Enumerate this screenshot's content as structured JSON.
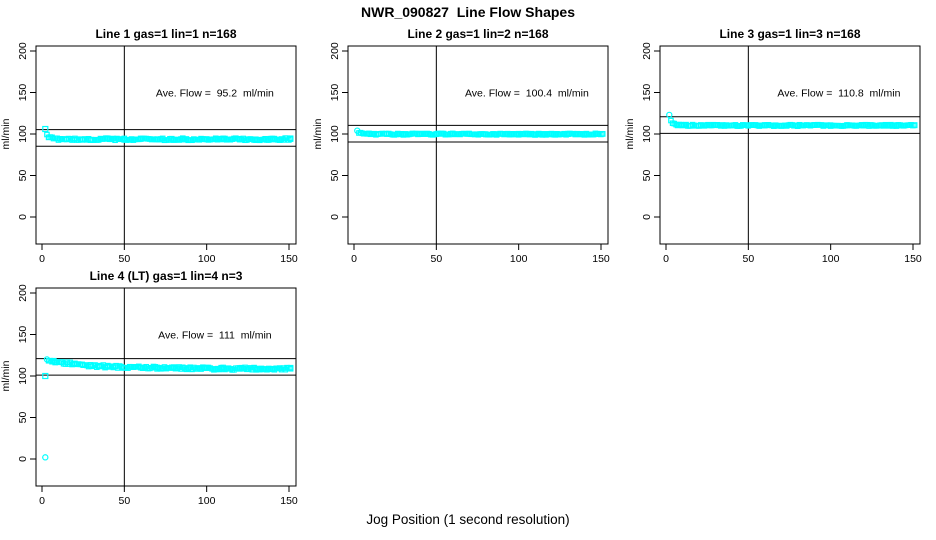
{
  "page": {
    "main_title": "NWR_090827  Line Flow Shapes",
    "x_axis_label": "Jog Position (1 second resolution)",
    "background_color": "#FFFFFF",
    "marker_color": "#00FFFF",
    "line_color": "#000000"
  },
  "chart_data": [
    {
      "type": "scatter",
      "title": "Line 1 gas=1 lin=1 n=168",
      "n": 168,
      "ave_flow_ml_min": 95.2,
      "annotation": "Ave. Flow =  95.2  ml/min",
      "ylabel": "ml/min",
      "xticks": [
        0,
        50,
        100,
        150
      ],
      "yticks": [
        0,
        50,
        100,
        150,
        200
      ],
      "xlim": [
        -4,
        155
      ],
      "ylim": [
        -32,
        212
      ],
      "ref_vline_x": 50,
      "ref_hlines": [
        105.2,
        85.2
      ],
      "marker": "open-square",
      "marker_color": "#00FFFF",
      "noise_amp": 1.3,
      "special_points": [
        {
          "x": 2,
          "y": 106,
          "marker": "square"
        }
      ],
      "points": [
        [
          3,
          99.5
        ],
        [
          4,
          96.5
        ],
        [
          5,
          95.5
        ],
        [
          7,
          94.5
        ],
        [
          10,
          94
        ],
        [
          15,
          93.8
        ],
        [
          20,
          93.7
        ],
        [
          25,
          93.8
        ],
        [
          30,
          93.6
        ],
        [
          40,
          93.7
        ],
        [
          50,
          93.6
        ],
        [
          60,
          93.8
        ],
        [
          70,
          93.6
        ],
        [
          80,
          93.7
        ],
        [
          90,
          93.6
        ],
        [
          100,
          93.8
        ],
        [
          110,
          93.6
        ],
        [
          120,
          93.7
        ],
        [
          130,
          93.6
        ],
        [
          140,
          93.7
        ],
        [
          151,
          93.8
        ]
      ]
    },
    {
      "type": "scatter",
      "title": "Line 2 gas=1 lin=2 n=168",
      "n": 168,
      "ave_flow_ml_min": 100.4,
      "annotation": "Ave. Flow =  100.4  ml/min",
      "ylabel": "ml/min",
      "xticks": [
        0,
        50,
        100,
        150
      ],
      "yticks": [
        0,
        50,
        100,
        150,
        200
      ],
      "xlim": [
        -4,
        155
      ],
      "ylim": [
        -32,
        212
      ],
      "ref_vline_x": 50,
      "ref_hlines": [
        110.4,
        90.4
      ],
      "marker": "open-square",
      "marker_color": "#00FFFF",
      "noise_amp": 0.9,
      "special_points": [
        {
          "x": 2,
          "y": 104,
          "marker": "circle"
        }
      ],
      "points": [
        [
          3,
          101.5
        ],
        [
          4,
          100.8
        ],
        [
          6,
          100.2
        ],
        [
          8,
          100
        ],
        [
          10,
          99.9
        ],
        [
          15,
          99.8
        ],
        [
          20,
          99.8
        ],
        [
          30,
          99.8
        ],
        [
          40,
          99.9
        ],
        [
          50,
          99.8
        ],
        [
          60,
          99.8
        ],
        [
          70,
          99.9
        ],
        [
          80,
          99.8
        ],
        [
          90,
          99.8
        ],
        [
          100,
          99.9
        ],
        [
          110,
          99.8
        ],
        [
          120,
          99.8
        ],
        [
          130,
          99.9
        ],
        [
          140,
          99.8
        ],
        [
          151,
          100
        ]
      ]
    },
    {
      "type": "scatter",
      "title": "Line 3 gas=1 lin=3 n=168",
      "n": 168,
      "ave_flow_ml_min": 110.8,
      "annotation": "Ave. Flow =  110.8  ml/min",
      "ylabel": "ml/min",
      "xticks": [
        0,
        50,
        100,
        150
      ],
      "yticks": [
        0,
        50,
        100,
        150,
        200
      ],
      "xlim": [
        -4,
        155
      ],
      "ylim": [
        -32,
        212
      ],
      "ref_vline_x": 50,
      "ref_hlines": [
        120.8,
        100.8
      ],
      "marker": "open-square",
      "marker_color": "#00FFFF",
      "noise_amp": 0.9,
      "special_points": [
        {
          "x": 2,
          "y": 123,
          "marker": "circle"
        }
      ],
      "points": [
        [
          3,
          115.5
        ],
        [
          4,
          112.8
        ],
        [
          5,
          111.8
        ],
        [
          7,
          111
        ],
        [
          10,
          110.6
        ],
        [
          15,
          110.4
        ],
        [
          20,
          110.3
        ],
        [
          30,
          110.3
        ],
        [
          40,
          110.4
        ],
        [
          50,
          110.3
        ],
        [
          60,
          110.3
        ],
        [
          70,
          110.4
        ],
        [
          80,
          110.3
        ],
        [
          90,
          110.3
        ],
        [
          100,
          110.4
        ],
        [
          110,
          110.3
        ],
        [
          120,
          110.3
        ],
        [
          130,
          110.4
        ],
        [
          140,
          110.3
        ],
        [
          151,
          110.4
        ]
      ]
    },
    {
      "type": "scatter",
      "title": "Line 4 (LT) gas=1 lin=4 n=3",
      "n": 3,
      "ave_flow_ml_min": 111,
      "annotation": "Ave. Flow =  111  ml/min",
      "ylabel": "ml/min",
      "xticks": [
        0,
        50,
        100,
        150
      ],
      "yticks": [
        0,
        50,
        100,
        150,
        200
      ],
      "xlim": [
        -4,
        155
      ],
      "ylim": [
        -32,
        212
      ],
      "ref_vline_x": 50,
      "ref_hlines": [
        121,
        101
      ],
      "marker": "open-square",
      "marker_color": "#00FFFF",
      "noise_amp": 1.6,
      "special_points": [
        {
          "x": 2,
          "y": 2,
          "marker": "circle"
        },
        {
          "x": 2,
          "y": 100,
          "marker": "square"
        },
        {
          "x": 3,
          "y": 120,
          "marker": "circle"
        }
      ],
      "points": [
        [
          4,
          119.6
        ],
        [
          5,
          119.2
        ],
        [
          8,
          117.8
        ],
        [
          12,
          116.4
        ],
        [
          16,
          115.2
        ],
        [
          20,
          114.2
        ],
        [
          25,
          113.2
        ],
        [
          30,
          112.5
        ],
        [
          35,
          112
        ],
        [
          40,
          111.5
        ],
        [
          45,
          111.2
        ],
        [
          50,
          111
        ],
        [
          60,
          110.4
        ],
        [
          70,
          109.9
        ],
        [
          80,
          109.6
        ],
        [
          90,
          109.3
        ],
        [
          100,
          109.1
        ],
        [
          110,
          109
        ],
        [
          120,
          108.9
        ],
        [
          130,
          108.8
        ],
        [
          140,
          108.8
        ],
        [
          151,
          108.7
        ]
      ]
    }
  ]
}
